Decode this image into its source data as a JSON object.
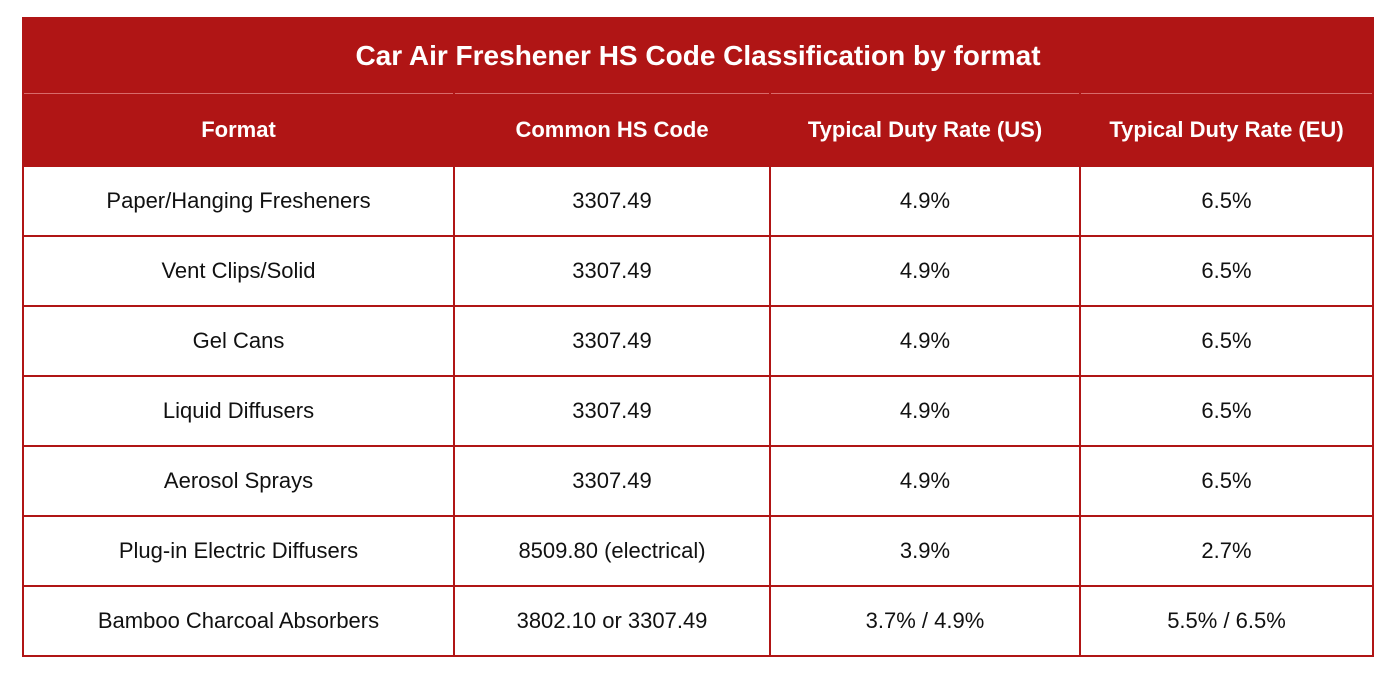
{
  "table": {
    "title": "Car Air Freshener HS Code Classification by format",
    "headers": [
      "Format",
      "Common HS Code",
      "Typical Duty Rate (US)",
      "Typical Duty Rate (EU)"
    ],
    "rows": [
      [
        "Paper/Hanging Fresheners",
        "3307.49",
        "4.9%",
        "6.5%"
      ],
      [
        "Vent Clips/Solid",
        "3307.49",
        "4.9%",
        "6.5%"
      ],
      [
        "Gel Cans",
        "3307.49",
        "4.9%",
        "6.5%"
      ],
      [
        "Liquid Diffusers",
        "3307.49",
        "4.9%",
        "6.5%"
      ],
      [
        "Aerosol Sprays",
        "3307.49",
        "4.9%",
        "6.5%"
      ],
      [
        "Plug-in Electric Diffusers",
        "8509.80 (electrical)",
        "3.9%",
        "2.7%"
      ],
      [
        "Bamboo Charcoal Absorbers",
        "3802.10 or 3307.49",
        "3.7% / 4.9%",
        "5.5% / 6.5%"
      ]
    ]
  },
  "colors": {
    "header_bg": "#b01515",
    "header_text": "#ffffff",
    "border": "#b01515",
    "body_text": "#111111"
  }
}
